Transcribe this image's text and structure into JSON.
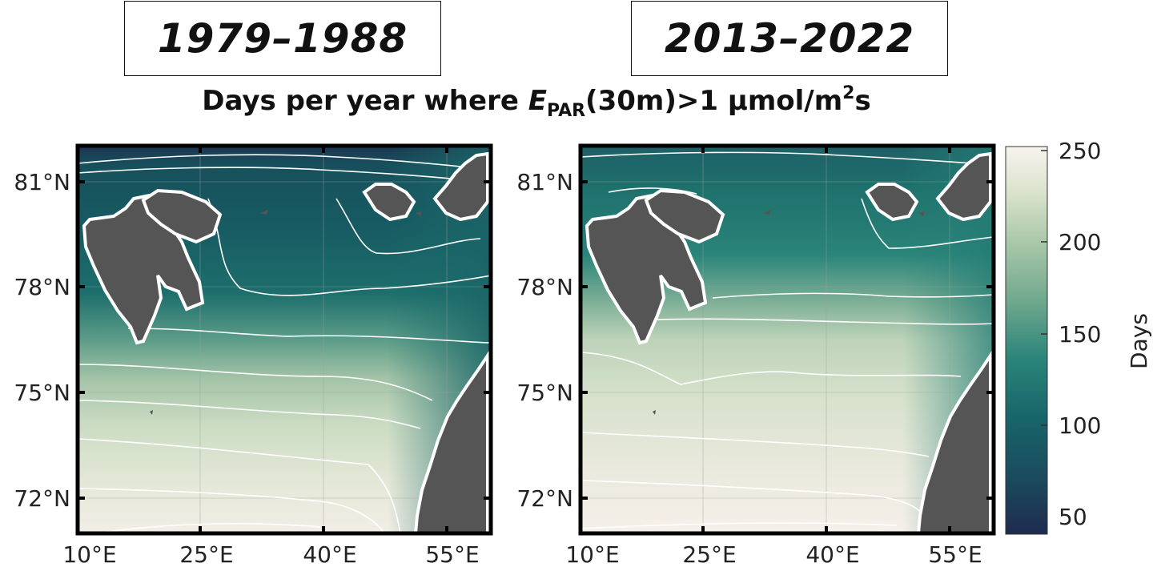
{
  "panels": [
    {
      "period": "1979–1988"
    },
    {
      "period": "2013–2022"
    }
  ],
  "title": {
    "prefix": "Days per year where ",
    "symbol": "E",
    "subscript": "PAR",
    "middle": "(30m)>1 µmol/m",
    "superscript": "2",
    "suffix": "s"
  },
  "axes": {
    "lat_labels": [
      "81°N",
      "78°N",
      "75°N",
      "72°N"
    ],
    "lon_labels": [
      "10°E",
      "25°E",
      "40°E",
      "55°E"
    ]
  },
  "colorbar": {
    "label": "Days",
    "ticks": [
      "250",
      "200",
      "150",
      "100",
      "50"
    ],
    "range": [
      45,
      250
    ],
    "colors": [
      "#1e2b4f",
      "#17565d",
      "#1d7a6f",
      "#4b9a82",
      "#8dbb9a",
      "#c2d6b8",
      "#e3e6d4",
      "#f7f2ee"
    ]
  },
  "map_colors": {
    "land": "#555555",
    "coast": "#ffffff",
    "contour": "#ffffff",
    "grid": "#9aa39a"
  }
}
